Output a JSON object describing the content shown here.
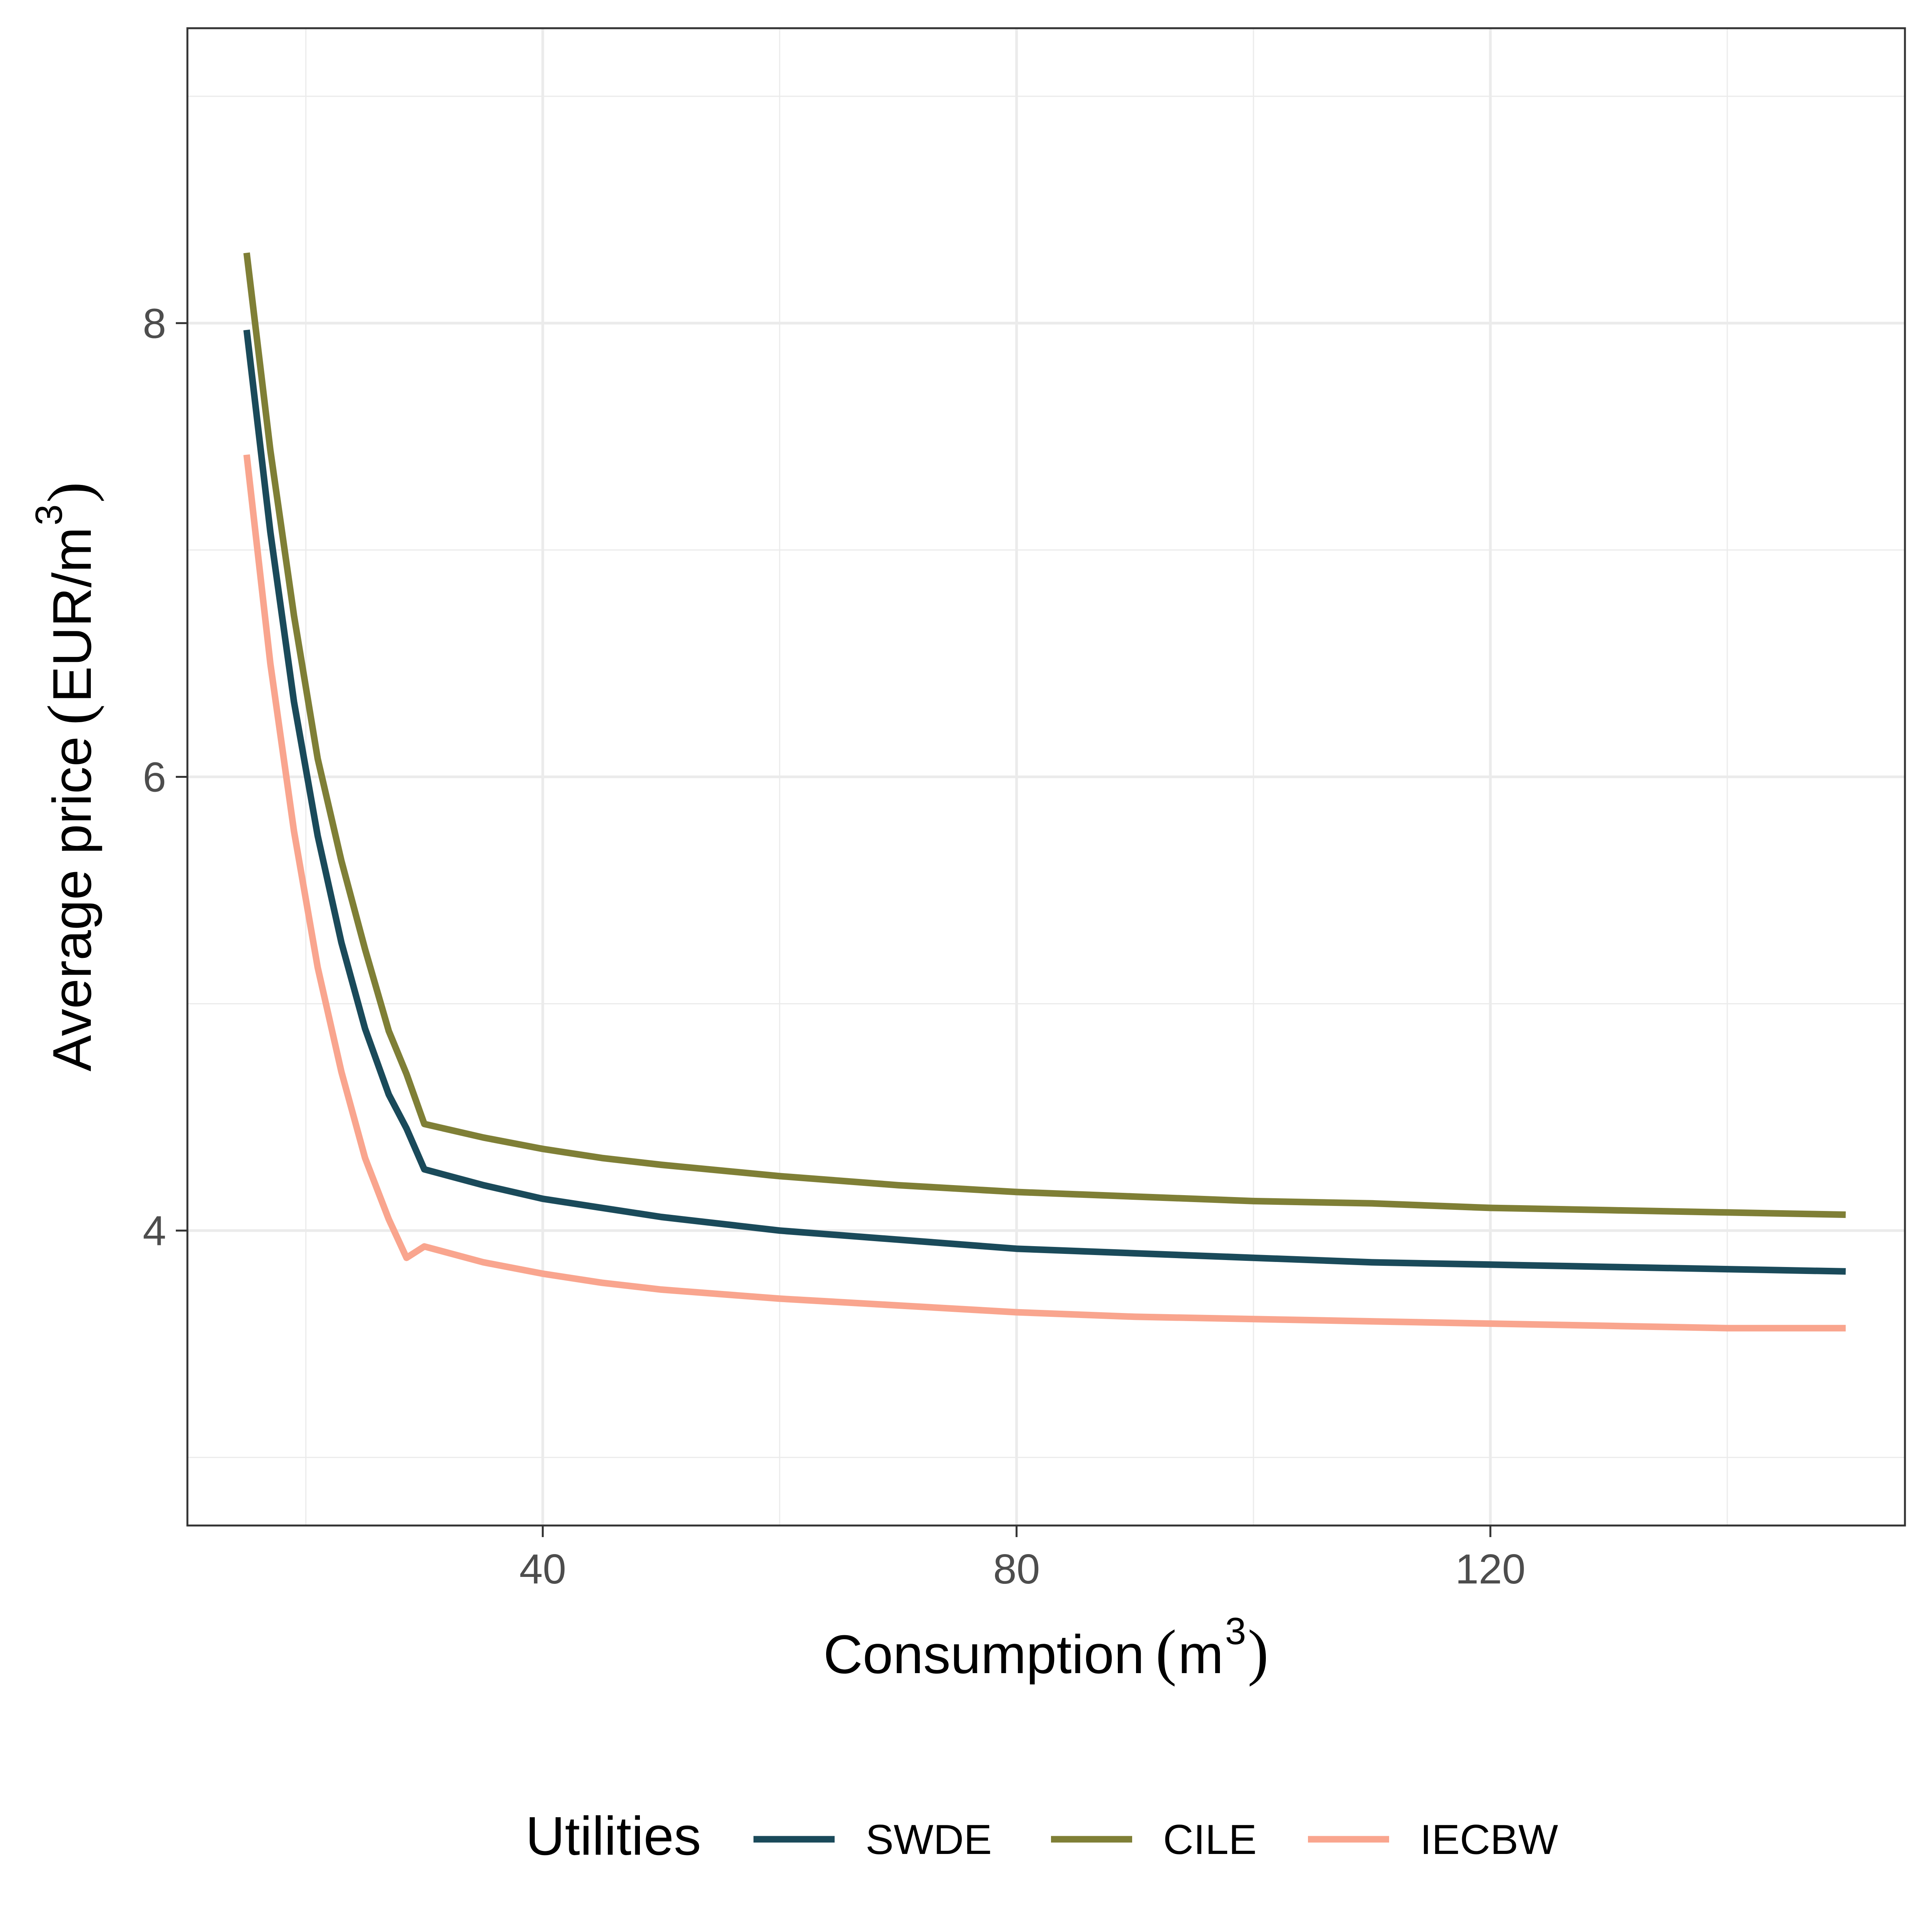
{
  "chart_data": {
    "type": "line",
    "xlabel": {
      "text": "Consumption",
      "open": "(",
      "base": "m",
      "sup": "3",
      "close": ")"
    },
    "ylabel": {
      "text": "Average price",
      "open": "(",
      "unit": "EUR/m",
      "sup": "3",
      "close": ")"
    },
    "xlim": [
      10,
      155
    ],
    "ylim": [
      2.7,
      9.3
    ],
    "x_ticks": [
      40,
      80,
      120
    ],
    "y_ticks": [
      4,
      6,
      8
    ],
    "grid": true,
    "legend": {
      "title": "Utilities",
      "position": "bottom"
    },
    "x": [
      15,
      17,
      19,
      21,
      23,
      25,
      27,
      28.5,
      30,
      35,
      40,
      45,
      50,
      60,
      70,
      80,
      90,
      100,
      110,
      120,
      130,
      140,
      150
    ],
    "series": [
      {
        "name": "SWDE",
        "color": "#1a4a5a",
        "values": [
          7.97,
          7.08,
          6.33,
          5.74,
          5.27,
          4.89,
          4.6,
          4.45,
          4.27,
          4.2,
          4.14,
          4.1,
          4.06,
          4.0,
          3.96,
          3.92,
          3.9,
          3.88,
          3.86,
          3.85,
          3.84,
          3.83,
          3.82
        ]
      },
      {
        "name": "CILE",
        "color": "#7f7f36",
        "values": [
          8.31,
          7.44,
          6.71,
          6.08,
          5.63,
          5.24,
          4.88,
          4.69,
          4.47,
          4.41,
          4.36,
          4.32,
          4.29,
          4.24,
          4.2,
          4.17,
          4.15,
          4.13,
          4.12,
          4.1,
          4.09,
          4.08,
          4.07
        ]
      },
      {
        "name": "IECBW",
        "color": "#f9a58e",
        "values": [
          7.42,
          6.5,
          5.76,
          5.16,
          4.7,
          4.32,
          4.05,
          3.88,
          3.93,
          3.86,
          3.81,
          3.77,
          3.74,
          3.7,
          3.67,
          3.64,
          3.62,
          3.61,
          3.6,
          3.59,
          3.58,
          3.57,
          3.57
        ]
      }
    ]
  }
}
